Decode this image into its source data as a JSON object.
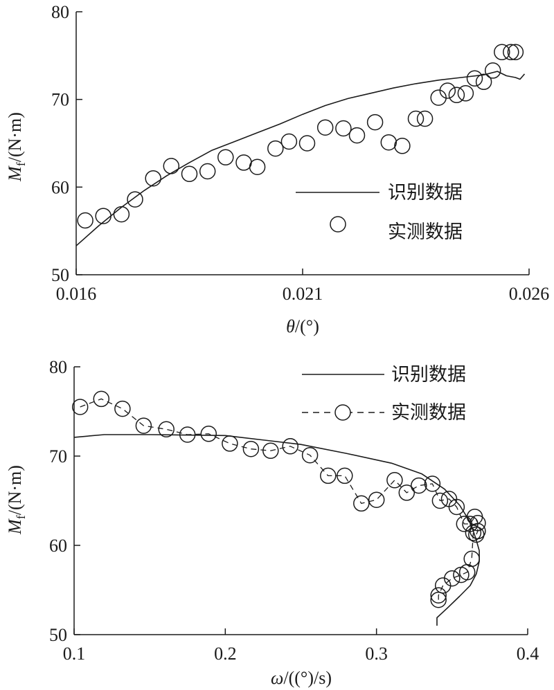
{
  "chart_data": [
    {
      "type": "line",
      "title": "",
      "xlabel_var": "θ",
      "xlabel_unit": "/(°)",
      "ylabel_var": "M",
      "ylabel_sub": "f",
      "ylabel_unit": "/(N·m)",
      "xlim": [
        0.016,
        0.026
      ],
      "ylim": [
        50,
        80
      ],
      "xticks": [
        0.016,
        0.021,
        0.026
      ],
      "xtick_labels": [
        "0.016",
        "0.021",
        "0.026"
      ],
      "yticks": [
        50,
        60,
        70,
        80
      ],
      "ytick_labels": [
        "50",
        "60",
        "70",
        "80"
      ],
      "grid": false,
      "legend_position": "middle-right",
      "series": [
        {
          "name": "识别数据",
          "style": "solid-line",
          "x": [
            0.016,
            0.0165,
            0.017,
            0.0175,
            0.018,
            0.0185,
            0.019,
            0.0195,
            0.02,
            0.0205,
            0.021,
            0.0215,
            0.022,
            0.0225,
            0.023,
            0.0235,
            0.024,
            0.0245,
            0.025,
            0.0253,
            0.0255,
            0.0257,
            0.0258,
            0.0259
          ],
          "y": [
            53.3,
            55.6,
            57.7,
            59.6,
            61.3,
            62.8,
            64.2,
            65.2,
            66.2,
            67.2,
            68.3,
            69.3,
            70.1,
            70.7,
            71.3,
            71.8,
            72.2,
            72.5,
            72.8,
            73.2,
            72.7,
            72.5,
            72.3,
            72.9
          ]
        },
        {
          "name": "实测数据",
          "style": "circle-markers",
          "x": [
            0.0162,
            0.0166,
            0.017,
            0.0173,
            0.0177,
            0.0181,
            0.0185,
            0.0189,
            0.0193,
            0.0197,
            0.02,
            0.0204,
            0.0207,
            0.0211,
            0.0215,
            0.0219,
            0.0222,
            0.0226,
            0.0229,
            0.0232,
            0.0235,
            0.0237,
            0.024,
            0.0242,
            0.0244,
            0.0246,
            0.0248,
            0.025,
            0.0252,
            0.0254,
            0.0256,
            0.0257
          ],
          "y": [
            56.2,
            56.7,
            56.9,
            58.6,
            61.0,
            62.4,
            61.5,
            61.8,
            63.4,
            62.8,
            62.3,
            64.4,
            65.2,
            65.0,
            66.8,
            66.7,
            65.9,
            67.4,
            65.1,
            64.7,
            67.8,
            67.8,
            70.2,
            71.0,
            70.5,
            70.7,
            72.4,
            72.0,
            73.3,
            75.4,
            75.4,
            75.4
          ]
        }
      ]
    },
    {
      "type": "line",
      "title": "",
      "xlabel_var": "ω",
      "xlabel_unit": "/((°)/s)",
      "ylabel_var": "M",
      "ylabel_sub": "f",
      "ylabel_unit": "/(N·m)",
      "xlim": [
        0.1,
        0.4
      ],
      "ylim": [
        50,
        80
      ],
      "xticks": [
        0.1,
        0.2,
        0.3,
        0.4
      ],
      "xtick_labels": [
        "0.1",
        "0.2",
        "0.3",
        "0.4"
      ],
      "yticks": [
        50,
        60,
        70,
        80
      ],
      "ytick_labels": [
        "50",
        "60",
        "70",
        "80"
      ],
      "grid": false,
      "legend_position": "top-right",
      "series": [
        {
          "name": "识别数据",
          "style": "solid-line",
          "x": [
            0.1,
            0.12,
            0.15,
            0.2,
            0.25,
            0.28,
            0.31,
            0.33,
            0.345,
            0.355,
            0.362,
            0.366,
            0.368,
            0.368,
            0.366,
            0.362,
            0.355,
            0.347,
            0.34,
            0.34
          ],
          "y": [
            72.1,
            72.4,
            72.4,
            72.3,
            71.3,
            70.3,
            69.2,
            68.0,
            66.3,
            64.5,
            62.6,
            60.6,
            59.4,
            58.2,
            56.8,
            55.5,
            54.3,
            53.0,
            51.9,
            51.0
          ]
        },
        {
          "name": "实测数据",
          "style": "dashed-line-circle-markers",
          "x": [
            0.104,
            0.118,
            0.132,
            0.146,
            0.161,
            0.175,
            0.189,
            0.203,
            0.217,
            0.23,
            0.243,
            0.256,
            0.268,
            0.279,
            0.29,
            0.3,
            0.312,
            0.32,
            0.328,
            0.337,
            0.342,
            0.348,
            0.353,
            0.358,
            0.362,
            0.365,
            0.367,
            0.367,
            0.366,
            0.364,
            0.363,
            0.36,
            0.356,
            0.35,
            0.344,
            0.341,
            0.341
          ],
          "y": [
            75.5,
            76.4,
            75.3,
            73.4,
            73.0,
            72.4,
            72.5,
            71.4,
            70.8,
            70.6,
            71.1,
            70.1,
            67.8,
            67.8,
            64.7,
            65.1,
            67.3,
            65.9,
            66.7,
            66.9,
            65.0,
            65.2,
            64.3,
            62.4,
            62.4,
            63.2,
            62.5,
            61.6,
            61.2,
            61.4,
            58.5,
            57.0,
            56.7,
            56.3,
            55.5,
            54.4,
            53.9
          ]
        }
      ]
    }
  ]
}
